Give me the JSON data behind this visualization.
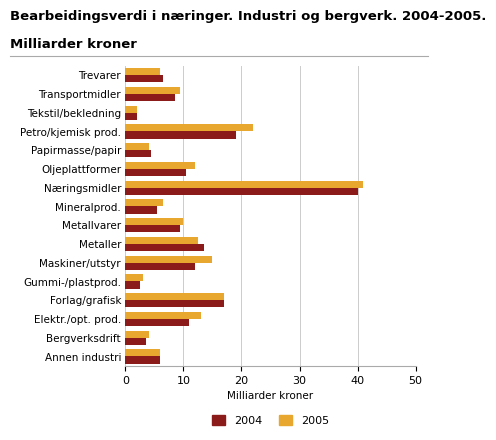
{
  "title_line1": "Bearbeidingsverdi i næringer. Industri og bergverk. 2004-2005.",
  "title_line2": "Milliarder kroner",
  "categories": [
    "Trevarer",
    "Transportmidler",
    "Tekstil/bekledning",
    "Petro/kjemisk prod.",
    "Papirmasse/papir",
    "Oljeplattformer",
    "Næringsmidler",
    "Mineralprod.",
    "Metallvarer",
    "Metaller",
    "Maskiner/utstyr",
    "Gummi-/plastprod.",
    "Forlag/grafisk",
    "Elektr./opt. prod.",
    "Bergverksdrift",
    "Annen industri"
  ],
  "values_2004": [
    6.5,
    8.5,
    2.0,
    19.0,
    4.5,
    10.5,
    40.0,
    5.5,
    9.5,
    13.5,
    12.0,
    2.5,
    17.0,
    11.0,
    3.5,
    6.0
  ],
  "values_2005": [
    6.0,
    9.5,
    2.0,
    22.0,
    4.0,
    12.0,
    41.0,
    6.5,
    10.0,
    12.5,
    15.0,
    3.0,
    17.0,
    13.0,
    4.0,
    6.0
  ],
  "color_2004": "#8B1A1A",
  "color_2005": "#E8A830",
  "xlabel": "Milliarder kroner",
  "xlim": [
    0,
    50
  ],
  "xticks": [
    0,
    10,
    20,
    30,
    40,
    50
  ],
  "background_color": "#ffffff",
  "grid_color": "#cccccc",
  "title_fontsize": 9.5,
  "label_fontsize": 7.5,
  "tick_fontsize": 8,
  "bar_height": 0.38
}
